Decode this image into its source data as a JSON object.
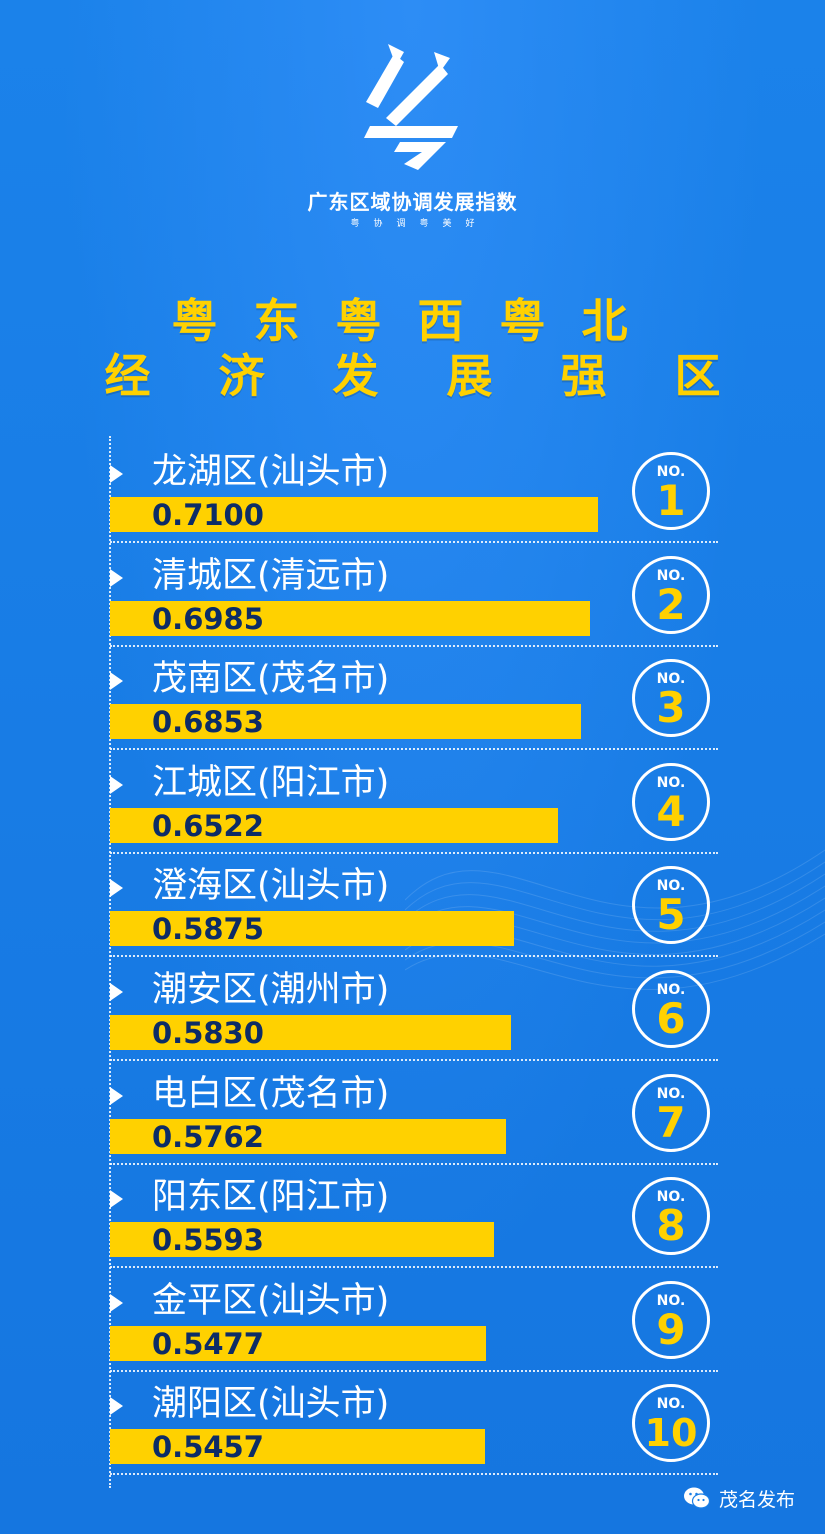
{
  "brand": {
    "title": "广东区域协调发展指数",
    "subtitle": "粤协调粤美好"
  },
  "heading": {
    "line1": "粤东粤西粤北",
    "line2": "经济发展强区"
  },
  "watermark": {
    "text": "茂名发布",
    "icon": "wechat-icon"
  },
  "colors": {
    "background": "#1a7fe6",
    "accent": "#ffd100",
    "value_text": "#0d2c66"
  },
  "chart_data": {
    "type": "bar",
    "orientation": "horizontal",
    "title": "",
    "rank_label": "NO.",
    "categories": [
      "龙湖区(汕头市)",
      "清城区(清远市)",
      "茂南区(茂名市)",
      "江城区(阳江市)",
      "澄海区(汕头市)",
      "潮安区(潮州市)",
      "电白区(茂名市)",
      "阳东区(阳江市)",
      "金平区(汕头市)",
      "潮阳区(汕头市)"
    ],
    "values": [
      "0.7100",
      "0.6985",
      "0.6853",
      "0.6522",
      "0.5875",
      "0.5830",
      "0.5762",
      "0.5593",
      "0.5477",
      "0.5457"
    ],
    "ranks": [
      "1",
      "2",
      "3",
      "4",
      "5",
      "6",
      "7",
      "8",
      "9",
      "10"
    ],
    "grid": false,
    "legend": "none"
  }
}
